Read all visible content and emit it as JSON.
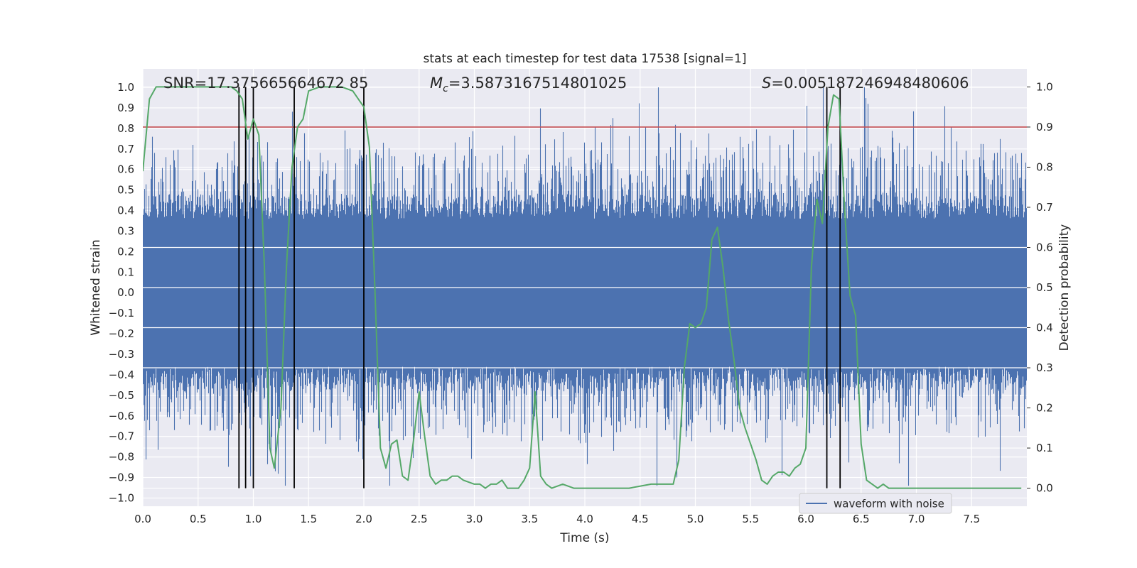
{
  "chart_data": {
    "type": "line",
    "title": "stats at each timestep for test data 17538 [signal=1]",
    "xlabel": "Time (s)",
    "ylabel": "Whitened strain",
    "y2label": "Detection probability",
    "xlim": [
      0,
      8
    ],
    "ylim": [
      -1.04,
      1.09
    ],
    "y2lim": [
      -0.045,
      1.045
    ],
    "xticks": [
      "0.0",
      "0.5",
      "1.0",
      "1.5",
      "2.0",
      "2.5",
      "3.0",
      "3.5",
      "4.0",
      "4.5",
      "5.0",
      "5.5",
      "6.0",
      "6.5",
      "7.0",
      "7.5"
    ],
    "yticks": [
      "-1.0",
      "-0.9",
      "-0.8",
      "-0.7",
      "-0.6",
      "-0.5",
      "-0.4",
      "-0.3",
      "-0.2",
      "-0.1",
      "0.0",
      "0.1",
      "0.2",
      "0.3",
      "0.4",
      "0.5",
      "0.6",
      "0.7",
      "0.8",
      "0.9",
      "1.0"
    ],
    "y2ticks": [
      "0.0",
      "0.1",
      "0.2",
      "0.3",
      "0.4",
      "0.5",
      "0.6",
      "0.7",
      "0.8",
      "0.9",
      "1.0"
    ],
    "annotations": {
      "snr": "SNR=17.375665664672 85",
      "mc_symbol": "M",
      "mc_sub": "c",
      "mc_value": "=3.5873167514801025",
      "s_symbol": "S",
      "s_value": "=0.005187246948480606"
    },
    "threshold": {
      "y2": 0.9,
      "color": "#c44e52"
    },
    "detection_lines_x": [
      0.87,
      0.93,
      1.0,
      1.37,
      2.0,
      6.19,
      6.31
    ],
    "waveform_series": {
      "name": "waveform with noise",
      "color": "#4c72b0",
      "duration": 8,
      "band_core": 0.36,
      "band_max_top": 1.0,
      "band_max_bottom": -0.94
    },
    "probability_series": {
      "color": "#55a868",
      "x": [
        0.0,
        0.06,
        0.12,
        0.2,
        0.3,
        0.4,
        0.5,
        0.6,
        0.7,
        0.8,
        0.85,
        0.9,
        0.95,
        1.0,
        1.05,
        1.1,
        1.15,
        1.19,
        1.25,
        1.3,
        1.35,
        1.4,
        1.45,
        1.5,
        1.6,
        1.7,
        1.8,
        1.9,
        1.95,
        2.0,
        2.05,
        2.1,
        2.15,
        2.2,
        2.25,
        2.3,
        2.35,
        2.4,
        2.45,
        2.5,
        2.55,
        2.6,
        2.65,
        2.7,
        2.75,
        2.8,
        2.85,
        2.9,
        3.0,
        3.05,
        3.1,
        3.15,
        3.2,
        3.25,
        3.3,
        3.35,
        3.4,
        3.45,
        3.5,
        3.55,
        3.6,
        3.65,
        3.7,
        3.8,
        3.9,
        4.0,
        4.2,
        4.4,
        4.6,
        4.7,
        4.8,
        4.85,
        4.9,
        4.95,
        5.0,
        5.05,
        5.1,
        5.15,
        5.2,
        5.25,
        5.3,
        5.35,
        5.4,
        5.45,
        5.5,
        5.55,
        5.6,
        5.65,
        5.7,
        5.75,
        5.8,
        5.85,
        5.9,
        5.95,
        6.0,
        6.05,
        6.1,
        6.15,
        6.2,
        6.25,
        6.3,
        6.35,
        6.4,
        6.45,
        6.5,
        6.55,
        6.6,
        6.65,
        6.7,
        6.75,
        6.8,
        6.9,
        7.0,
        7.2,
        7.3,
        7.4,
        7.5,
        7.6,
        7.7,
        7.8,
        7.95
      ],
      "y": [
        0.79,
        0.97,
        1.0,
        1.0,
        1.0,
        1.0,
        1.0,
        1.0,
        1.0,
        1.0,
        0.99,
        0.97,
        0.87,
        0.92,
        0.88,
        0.55,
        0.1,
        0.05,
        0.2,
        0.55,
        0.8,
        0.9,
        0.92,
        0.99,
        1.0,
        1.0,
        1.0,
        0.99,
        0.97,
        0.95,
        0.85,
        0.5,
        0.1,
        0.05,
        0.11,
        0.12,
        0.03,
        0.02,
        0.12,
        0.24,
        0.13,
        0.03,
        0.01,
        0.02,
        0.02,
        0.03,
        0.03,
        0.02,
        0.01,
        0.01,
        0.0,
        0.01,
        0.01,
        0.02,
        0.0,
        0.0,
        0.0,
        0.02,
        0.05,
        0.24,
        0.03,
        0.01,
        0.0,
        0.01,
        0.0,
        0.0,
        0.0,
        0.0,
        0.01,
        0.01,
        0.01,
        0.07,
        0.3,
        0.41,
        0.4,
        0.41,
        0.45,
        0.62,
        0.65,
        0.55,
        0.42,
        0.32,
        0.2,
        0.15,
        0.11,
        0.07,
        0.02,
        0.01,
        0.03,
        0.04,
        0.04,
        0.03,
        0.05,
        0.06,
        0.1,
        0.55,
        0.72,
        0.66,
        0.9,
        0.98,
        0.97,
        0.7,
        0.48,
        0.43,
        0.11,
        0.02,
        0.01,
        0.0,
        0.01,
        0.0,
        0.0,
        0.0,
        0.0,
        0.0,
        0.0,
        0.0,
        0.0,
        0.0,
        0.0,
        0.0,
        0.0
      ]
    },
    "legend": {
      "placement": "lower-right",
      "entries": [
        "waveform with noise"
      ]
    },
    "grid": true
  }
}
